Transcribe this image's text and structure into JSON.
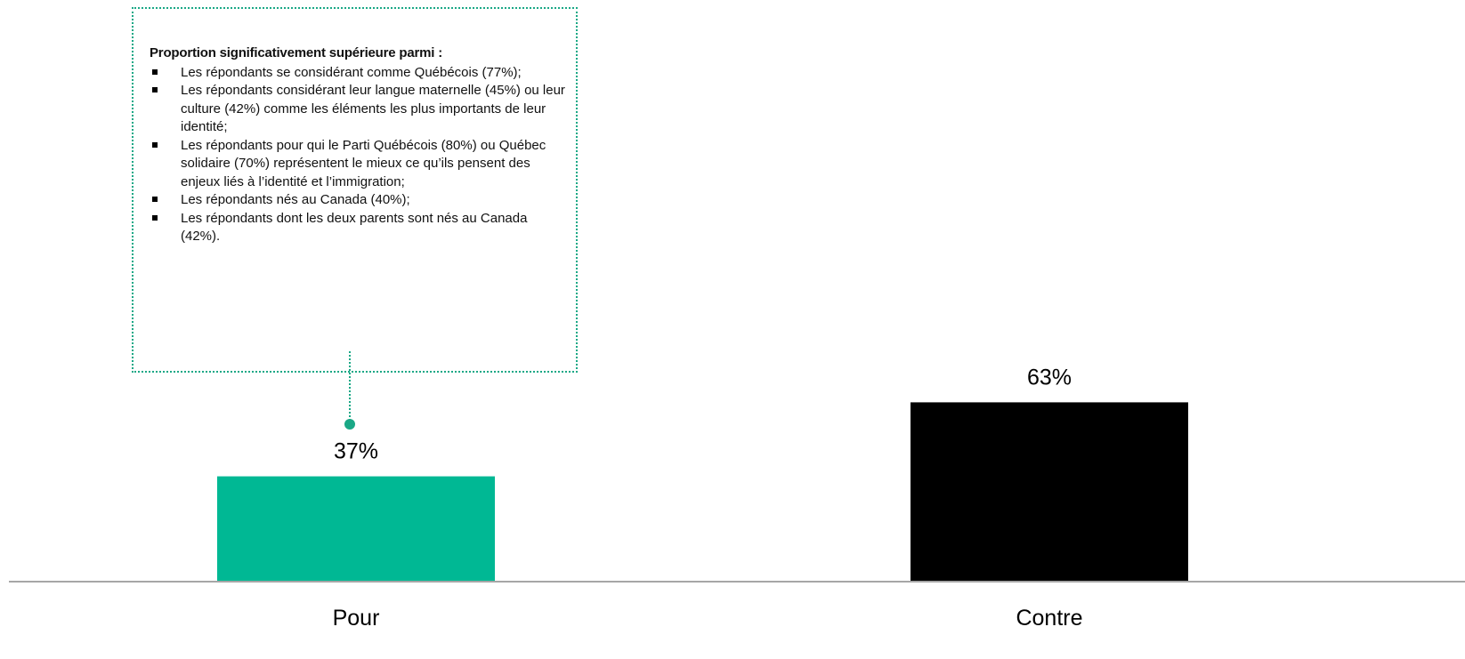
{
  "callout": {
    "title": "Proportion significativement supérieure parmi :",
    "items": [
      "Les répondants se considérant comme Québécois (77%);",
      "Les répondants considérant leur langue maternelle (45%) ou leur culture (42%) comme les éléments les plus importants de leur identité;",
      "Les répondants pour qui le Parti Québécois (80%) ou Québec solidaire (70%) représentent le mieux ce qu’ils pensent des enjeux liés à l’identité et l’immigration;",
      "Les répondants nés au Canada (40%);",
      "Les répondants dont les deux parents sont nés au Canada (42%)."
    ],
    "border_color": "#1aa886"
  },
  "chart_data": {
    "type": "bar",
    "categories": [
      "Pour",
      "Contre"
    ],
    "values": [
      37,
      63
    ],
    "value_labels": [
      "37%",
      "63%"
    ],
    "colors": [
      "#00b894",
      "#000000"
    ],
    "ylim": [
      0,
      100
    ],
    "grid": false,
    "legend": "none"
  }
}
